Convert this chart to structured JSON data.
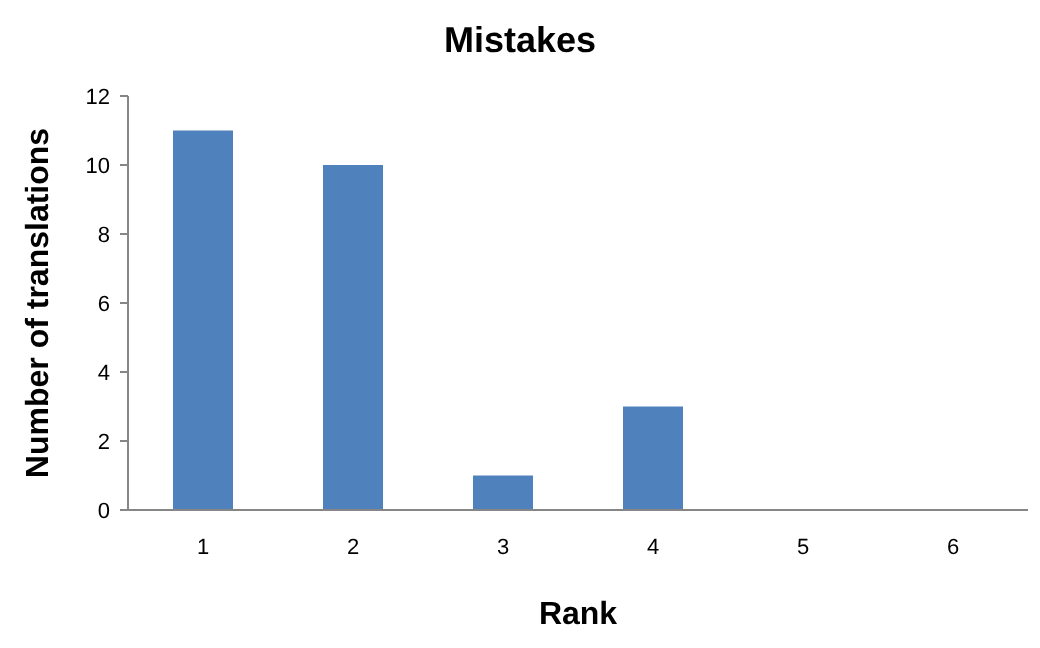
{
  "chart_data": {
    "type": "bar",
    "title": "Mistakes",
    "xlabel": "Rank",
    "ylabel": "Number of translations",
    "categories": [
      "1",
      "2",
      "3",
      "4",
      "5",
      "6"
    ],
    "values": [
      11,
      10,
      1,
      3,
      0,
      0
    ],
    "color": "#4f81bd",
    "ylim": [
      0,
      12
    ],
    "yticks": [
      0,
      2,
      4,
      6,
      8,
      10,
      12
    ],
    "grid": false
  }
}
